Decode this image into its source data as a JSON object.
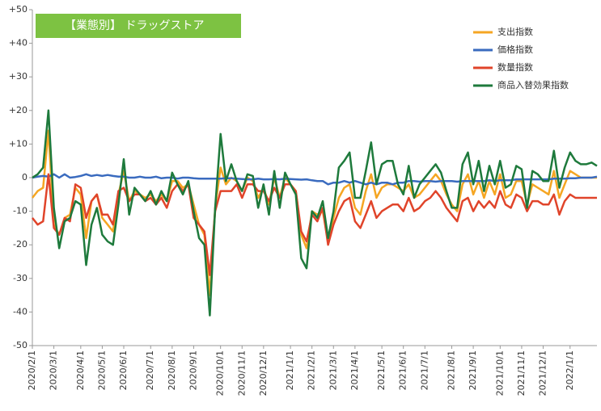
{
  "chart_data": {
    "type": "line",
    "title": "【業態別】 ドラッグストア",
    "categories": [
      "2020/2/1",
      null,
      null,
      null,
      "2020/3/1",
      null,
      null,
      null,
      null,
      "2020/4/1",
      null,
      null,
      null,
      "2020/5/1",
      null,
      null,
      null,
      "2020/6/1",
      null,
      null,
      null,
      null,
      "2020/7/1",
      null,
      null,
      null,
      "2020/8/1",
      null,
      null,
      null,
      "2020/9/1",
      null,
      null,
      null,
      null,
      "2020/10/1",
      null,
      null,
      null,
      "2020/11/1",
      null,
      null,
      null,
      "2020/12/1",
      null,
      null,
      null,
      null,
      "2021/1/1",
      null,
      null,
      null,
      "2021/2/1",
      null,
      null,
      null,
      "2021/3/1",
      null,
      null,
      null,
      "2021/4/1",
      null,
      null,
      null,
      null,
      "2021/5/1",
      null,
      null,
      null,
      "2021/6/1",
      null,
      null,
      null,
      "2021/7/1",
      null,
      null,
      null,
      null,
      "2021/8/1",
      null,
      null,
      null,
      "2021/9/1",
      null,
      null,
      null,
      null,
      "2021/10/1",
      null,
      null,
      null,
      "2021/11/1",
      null,
      null,
      null,
      "2021/12/1",
      null,
      null,
      null,
      null,
      "2022/1/1",
      null,
      null,
      null,
      null,
      null
    ],
    "series": [
      {
        "name": "支出指数",
        "color": "#f5a623",
        "values": [
          -6,
          -4,
          -3,
          14,
          -14,
          -17,
          -12,
          -11,
          -3,
          -5,
          -18,
          -7,
          -5,
          -12,
          -14,
          -16,
          -5,
          2,
          -7,
          -4,
          -5,
          -6,
          -5,
          -7,
          -5,
          -7,
          -1,
          -1,
          -3,
          -2,
          -8,
          -14,
          -17,
          -35,
          -9,
          3,
          -2,
          0,
          -1,
          -4,
          0,
          -1,
          -6,
          -3,
          -8,
          0,
          -6,
          0,
          -2,
          -4,
          -17,
          -21,
          -10,
          -11,
          -10,
          -19,
          -12,
          -6,
          -3,
          -2,
          -9,
          -11,
          -4,
          1,
          -6,
          -3,
          -2,
          -2,
          -3,
          -4,
          -2,
          -6,
          -5,
          -3,
          -1,
          1,
          -1,
          -5,
          -8,
          -10,
          -2,
          1,
          -5,
          -1,
          -6,
          -1,
          -5,
          1,
          -6,
          -5,
          -1,
          -1,
          -8,
          -2,
          -3,
          -4,
          -5,
          2,
          -6,
          -2,
          2,
          1,
          0,
          0,
          0,
          0
        ]
      },
      {
        "name": "価格指数",
        "color": "#3a6bbf",
        "values": [
          0,
          0.3,
          0.5,
          0.3,
          1,
          0,
          1,
          0,
          0.2,
          0.5,
          1,
          0.5,
          0.8,
          0.5,
          0.8,
          0.5,
          0.3,
          0.3,
          0,
          0,
          0.3,
          0,
          0,
          0.3,
          -0.2,
          0,
          0,
          -0.3,
          0,
          0,
          -0.2,
          -0.3,
          -0.3,
          -0.3,
          -0.3,
          -0.3,
          -0.2,
          -0.2,
          -0.3,
          -0.4,
          -0.5,
          -0.5,
          -0.3,
          -0.5,
          -0.5,
          -0.4,
          -0.5,
          -0.3,
          -0.4,
          -0.5,
          -0.6,
          -0.5,
          -0.8,
          -1,
          -1,
          -2,
          -1.5,
          -1.5,
          -1,
          -1.5,
          -1,
          -1.5,
          -2,
          -1.5,
          -2,
          -1.5,
          -1.5,
          -2,
          -1.5,
          -1.5,
          -1,
          -1,
          -1.2,
          -1,
          -1,
          -1.2,
          -1,
          -1,
          -1,
          -1.2,
          -1,
          -1,
          -1,
          -1,
          -1,
          -0.8,
          -1,
          -0.8,
          -0.8,
          -0.8,
          -0.5,
          -0.5,
          -0.5,
          -0.5,
          -0.5,
          -0.5,
          -0.5,
          -0.3,
          -0.3,
          -0.3,
          -0.2,
          -0.2,
          0,
          0,
          0,
          0.3
        ]
      },
      {
        "name": "数量指数",
        "color": "#e0442a",
        "values": [
          -12,
          -14,
          -13,
          1,
          -15,
          -17,
          -12,
          -13,
          -2,
          -3,
          -12,
          -7,
          -5,
          -11,
          -11,
          -14,
          -4,
          -3,
          -7,
          -5,
          -5,
          -7,
          -6,
          -8,
          -6,
          -9,
          -4,
          -2,
          -4,
          -2,
          -12,
          -14,
          -16,
          -29,
          -10,
          -4,
          -4,
          -4,
          -2,
          -6,
          -2,
          -2,
          -4,
          -4,
          -7,
          -3,
          -6,
          -2,
          -2,
          -4,
          -16,
          -19,
          -11,
          -13,
          -9,
          -20,
          -14,
          -10,
          -7,
          -6,
          -13,
          -15,
          -11,
          -7,
          -12,
          -10,
          -9,
          -8,
          -8,
          -10,
          -6,
          -10,
          -9,
          -7,
          -6,
          -4,
          -6,
          -9,
          -11,
          -13,
          -7,
          -6,
          -10,
          -7,
          -9,
          -7,
          -9,
          -4,
          -8,
          -9,
          -5,
          -6,
          -10,
          -7,
          -7,
          -8,
          -8,
          -5,
          -11,
          -7,
          -5,
          -6,
          -6,
          -6,
          -6,
          -6
        ]
      },
      {
        "name": "商品入替効果指数",
        "color": "#1e7a3c",
        "values": [
          0,
          1,
          3,
          20,
          -9,
          -21,
          -13,
          -12,
          -7,
          -8,
          -26,
          -14,
          -9,
          -17,
          -19,
          -20,
          -8,
          5.5,
          -11,
          -3,
          -5,
          -7,
          -4,
          -8,
          -4,
          -7,
          1.5,
          -2,
          -5,
          -1,
          -10,
          -18,
          -20,
          -41,
          -9,
          13,
          -1,
          4,
          -1,
          -4,
          1,
          0.5,
          -9,
          -2,
          -11,
          2,
          -9,
          1.5,
          -2,
          -5,
          -24,
          -27,
          -10,
          -12,
          -7,
          -18,
          -10,
          3,
          5,
          7.5,
          -6,
          -6,
          2,
          10.5,
          -2,
          4,
          5,
          5,
          -2,
          -5,
          3.5,
          -6,
          -2,
          0,
          2,
          4,
          1.5,
          -4,
          -9,
          -9,
          4,
          7.5,
          -2,
          5,
          -4,
          3.5,
          -2,
          5,
          -3,
          -2,
          3.5,
          2.5,
          -9,
          2,
          1,
          -1,
          -1,
          8,
          -3,
          3,
          7.5,
          5,
          4,
          4,
          4.5,
          3.5
        ]
      }
    ],
    "ylim": [
      -50,
      50
    ],
    "yticks": [
      -50,
      -40,
      -30,
      -20,
      -10,
      0,
      {
        "value": 10,
        "label": "+10"
      },
      {
        "value": 20,
        "label": "+20"
      },
      {
        "value": 30,
        "label": "+30"
      },
      {
        "value": 40,
        "label": "+40"
      },
      {
        "value": 50,
        "label": "+50"
      }
    ],
    "grid": false,
    "legend": "upper right"
  }
}
